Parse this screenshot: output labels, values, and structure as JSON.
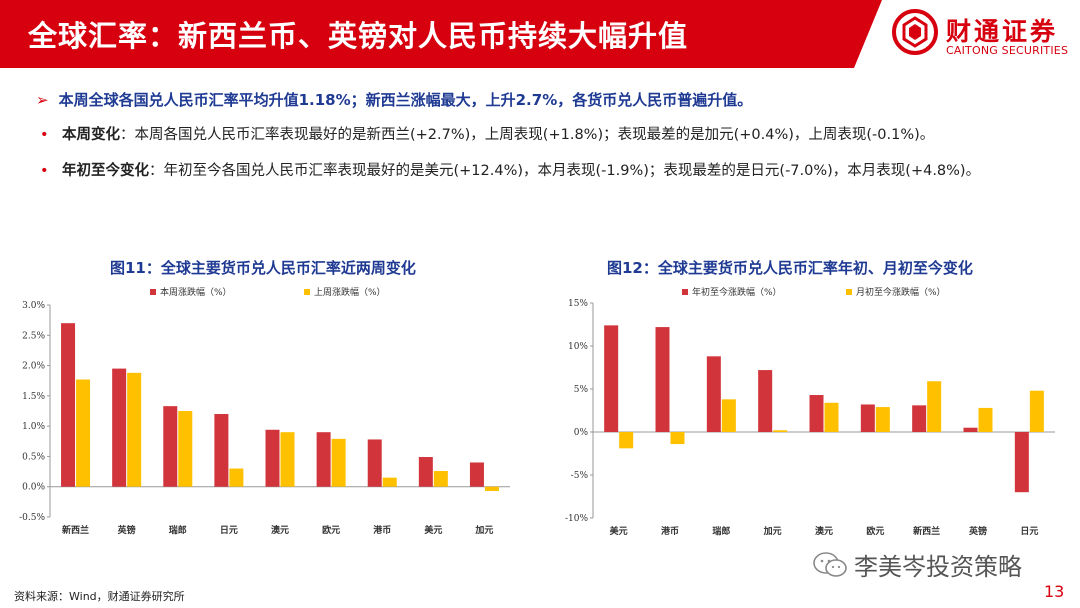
{
  "header": {
    "title": "全球汇率：新西兰币、英镑对人民币持续大幅升值",
    "logo_cn": "财通证券",
    "logo_en": "CAITONG SECURITIES",
    "brand_color": "#d7000f"
  },
  "summary": {
    "headline": "本周全球各国兑人民币汇率平均升值1.18%；新西兰涨幅最大，上升2.7%，各货币兑人民币普遍升值。",
    "bullet1_label": "本周变化",
    "bullet1_text": "：本周各国兑人民币汇率表现最好的是新西兰(+2.7%)，上周表现(+1.8%)；表现最差的是加元(+0.4%)，上周表现(-0.1%)。",
    "bullet2_label": "年初至今变化",
    "bullet2_text": "：年初至今各国兑人民币汇率表现最好的是美元(+12.4%)，本月表现(-1.9%)；表现最差的是日元(-7.0%)，本月表现(+4.8%)。"
  },
  "chart_data": [
    {
      "type": "bar",
      "title": "图11：全球主要货币兑人民币汇率近两周变化",
      "categories": [
        "新西兰",
        "英镑",
        "瑞郎",
        "日元",
        "澳元",
        "欧元",
        "港币",
        "美元",
        "加元"
      ],
      "series": [
        {
          "name": "本周涨跌幅（%）",
          "color": "#d1343a",
          "values": [
            2.7,
            1.95,
            1.33,
            1.2,
            0.94,
            0.9,
            0.78,
            0.49,
            0.4
          ]
        },
        {
          "name": "上周涨跌幅（%）",
          "color": "#ffc000",
          "values": [
            1.77,
            1.88,
            1.25,
            0.3,
            0.9,
            0.79,
            0.15,
            0.26,
            -0.07
          ]
        }
      ],
      "ylim": [
        -0.5,
        3.0
      ],
      "yticks": [
        "-0.5%",
        "0.0%",
        "0.5%",
        "1.0%",
        "1.5%",
        "2.0%",
        "2.5%",
        "3.0%"
      ],
      "ytick_values": [
        -0.5,
        0.0,
        0.5,
        1.0,
        1.5,
        2.0,
        2.5,
        3.0
      ],
      "legend": "top",
      "grid": false
    },
    {
      "type": "bar",
      "title": "图12：全球主要货币兑人民币汇率年初、月初至今变化",
      "categories": [
        "美元",
        "港币",
        "瑞郎",
        "加元",
        "澳元",
        "欧元",
        "新西兰",
        "英镑",
        "日元"
      ],
      "series": [
        {
          "name": "年初至今涨跌幅（%）",
          "color": "#d1343a",
          "values": [
            12.4,
            12.2,
            8.8,
            7.2,
            4.3,
            3.2,
            3.1,
            0.5,
            -7.0
          ]
        },
        {
          "name": "月初至今涨跌幅（%）",
          "color": "#ffc000",
          "values": [
            -1.9,
            -1.4,
            3.8,
            0.2,
            3.4,
            2.9,
            5.9,
            2.8,
            4.8
          ]
        }
      ],
      "ylim": [
        -10,
        15
      ],
      "yticks": [
        "-10%",
        "-5%",
        "0%",
        "5%",
        "10%",
        "15%"
      ],
      "ytick_values": [
        -10,
        -5,
        0,
        5,
        10,
        15
      ],
      "legend": "top",
      "grid": false
    }
  ],
  "footer": {
    "source": "资料来源：Wind，财通证券研究所",
    "watermark": "李美岑投资策略",
    "page_number": "13"
  }
}
